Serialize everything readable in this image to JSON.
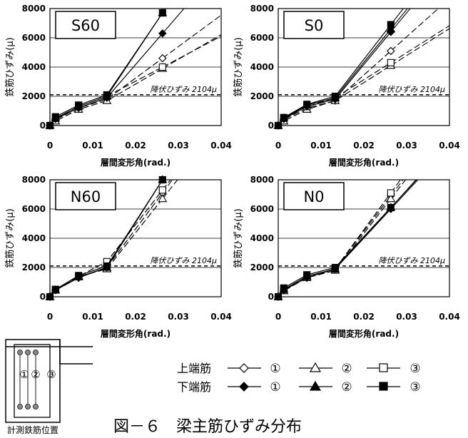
{
  "chart_data": [
    {
      "type": "line",
      "title": "S60",
      "xlabel": "層間変形角(rad.)",
      "ylabel": "鉄筋ひずみ(μ)",
      "xlim": [
        0,
        0.04
      ],
      "ylim": [
        0,
        8000
      ],
      "xticks": [
        "0",
        "0.01",
        "0.02",
        "0.03",
        "0.04"
      ],
      "yticks": [
        "0",
        "2000",
        "4000",
        "6000",
        "8000"
      ],
      "yield_label": "降伏ひずみ 2104μ",
      "yield_value": 2104,
      "grid": true,
      "series": [
        {
          "name": "上端筋①",
          "marker": "diamond",
          "fill": "open",
          "x": [
            0,
            0.0013,
            0.0067,
            0.0133,
            0.0263
          ],
          "y": [
            0,
            400,
            1200,
            1800,
            4600
          ]
        },
        {
          "name": "上端筋②",
          "marker": "triangle",
          "fill": "open",
          "x": [
            0,
            0.0013,
            0.0067,
            0.0133,
            0.0263
          ],
          "y": [
            0,
            300,
            1100,
            1700,
            3900
          ]
        },
        {
          "name": "上端筋③",
          "marker": "square",
          "fill": "open",
          "x": [
            0,
            0.0013,
            0.0067,
            0.0133,
            0.0263
          ],
          "y": [
            0,
            500,
            1300,
            2000,
            4000
          ]
        },
        {
          "name": "下端筋①",
          "marker": "diamond",
          "fill": "solid",
          "x": [
            0,
            0.0013,
            0.0067,
            0.0133,
            0.0263
          ],
          "y": [
            0,
            450,
            1200,
            1900,
            6300
          ]
        },
        {
          "name": "下端筋②",
          "marker": "triangle",
          "fill": "solid",
          "x": [
            0,
            0.0013,
            0.0067,
            0.0133,
            0.0263
          ],
          "y": [
            0,
            500,
            1300,
            2000,
            7700
          ]
        },
        {
          "name": "下端筋③",
          "marker": "square",
          "fill": "solid",
          "x": [
            0,
            0.0013,
            0.0067,
            0.0133,
            0.0263
          ],
          "y": [
            0,
            600,
            1400,
            2100,
            7700
          ]
        }
      ]
    },
    {
      "type": "line",
      "title": "S0",
      "xlabel": "層間変形角(rad.)",
      "ylabel": "鉄筋ひずみ(μ)",
      "xlim": [
        0,
        0.04
      ],
      "ylim": [
        0,
        8000
      ],
      "xticks": [
        "0",
        "0.01",
        "0.02",
        "0.03",
        "0.04"
      ],
      "yticks": [
        "0",
        "2000",
        "4000",
        "6000",
        "8000"
      ],
      "yield_label": "降伏ひずみ 2104μ",
      "yield_value": 2104,
      "grid": true,
      "series": [
        {
          "name": "上端筋①",
          "marker": "diamond",
          "fill": "open",
          "x": [
            0,
            0.0013,
            0.0067,
            0.0133,
            0.0263
          ],
          "y": [
            0,
            400,
            1200,
            1700,
            5100
          ]
        },
        {
          "name": "上端筋②",
          "marker": "triangle",
          "fill": "open",
          "x": [
            0,
            0.0013,
            0.0067,
            0.0133,
            0.0263
          ],
          "y": [
            0,
            300,
            1100,
            1700,
            4100
          ]
        },
        {
          "name": "上端筋③",
          "marker": "square",
          "fill": "open",
          "x": [
            0,
            0.0013,
            0.0067,
            0.0133,
            0.0263
          ],
          "y": [
            0,
            500,
            1300,
            1900,
            4300
          ]
        },
        {
          "name": "下端筋①",
          "marker": "diamond",
          "fill": "solid",
          "x": [
            0,
            0.0013,
            0.0067,
            0.0133,
            0.0263
          ],
          "y": [
            0,
            450,
            1300,
            1800,
            6400
          ]
        },
        {
          "name": "下端筋②",
          "marker": "triangle",
          "fill": "solid",
          "x": [
            0,
            0.0013,
            0.0067,
            0.0133,
            0.0263
          ],
          "y": [
            0,
            500,
            1400,
            1900,
            6600
          ]
        },
        {
          "name": "下端筋③",
          "marker": "square",
          "fill": "solid",
          "x": [
            0,
            0.0013,
            0.0067,
            0.0133,
            0.0263
          ],
          "y": [
            0,
            550,
            1450,
            2000,
            6900
          ]
        }
      ]
    },
    {
      "type": "line",
      "title": "N60",
      "xlabel": "層間変形角(rad.)",
      "ylabel": "鉄筋ひずみ(μ)",
      "xlim": [
        0,
        0.04
      ],
      "ylim": [
        0,
        8000
      ],
      "xticks": [
        "0",
        "0.01",
        "0.02",
        "0.03",
        "0.04"
      ],
      "yticks": [
        "0",
        "2000",
        "4000",
        "6000",
        "8000"
      ],
      "yield_label": "降伏ひずみ 2104μ",
      "yield_value": 2104,
      "grid": true,
      "series": [
        {
          "name": "上端筋①",
          "marker": "diamond",
          "fill": "open",
          "x": [
            0,
            0.0013,
            0.0067,
            0.0133,
            0.0263
          ],
          "y": [
            0,
            450,
            1300,
            2000,
            7100
          ]
        },
        {
          "name": "上端筋②",
          "marker": "triangle",
          "fill": "open",
          "x": [
            0,
            0.0013,
            0.0067,
            0.0133,
            0.0263
          ],
          "y": [
            0,
            450,
            1400,
            1900,
            6700
          ]
        },
        {
          "name": "上端筋③",
          "marker": "square",
          "fill": "open",
          "x": [
            0,
            0.0013,
            0.0067,
            0.0133,
            0.0263
          ],
          "y": [
            0,
            500,
            1400,
            2400,
            7300
          ]
        },
        {
          "name": "下端筋①",
          "marker": "diamond",
          "fill": "solid",
          "x": [
            0,
            0.0013,
            0.0067,
            0.0133,
            0.0263
          ],
          "y": [
            0,
            450,
            1300,
            2000,
            8000
          ]
        },
        {
          "name": "下端筋②",
          "marker": "triangle",
          "fill": "solid",
          "x": [
            0,
            0.0013,
            0.0067,
            0.0133,
            0.0263
          ],
          "y": [
            0,
            450,
            1350,
            2000,
            8000
          ]
        },
        {
          "name": "下端筋③",
          "marker": "square",
          "fill": "solid",
          "x": [
            0,
            0.0013,
            0.0067,
            0.0133,
            0.0263
          ],
          "y": [
            0,
            500,
            1450,
            2100,
            8000
          ]
        }
      ]
    },
    {
      "type": "line",
      "title": "N0",
      "xlabel": "層間変形角(rad.)",
      "ylabel": "鉄筋ひずみ(μ)",
      "xlim": [
        0,
        0.04
      ],
      "ylim": [
        0,
        8000
      ],
      "xticks": [
        "0",
        "0.01",
        "0.02",
        "0.03",
        "0.04"
      ],
      "yticks": [
        "0",
        "2000",
        "4000",
        "6000",
        "8000"
      ],
      "yield_label": "降伏ひずみ 2104μ",
      "yield_value": 2104,
      "grid": true,
      "series": [
        {
          "name": "上端筋①",
          "marker": "diamond",
          "fill": "open",
          "x": [
            0,
            0.0013,
            0.0067,
            0.0133,
            0.0263
          ],
          "y": [
            0,
            450,
            1300,
            1900,
            6900
          ]
        },
        {
          "name": "上端筋②",
          "marker": "triangle",
          "fill": "open",
          "x": [
            0,
            0.0013,
            0.0067,
            0.0133,
            0.0263
          ],
          "y": [
            0,
            400,
            1300,
            1800,
            6700
          ]
        },
        {
          "name": "上端筋③",
          "marker": "square",
          "fill": "open",
          "x": [
            0,
            0.0013,
            0.0067,
            0.0133,
            0.0263
          ],
          "y": [
            0,
            500,
            1400,
            1900,
            7100
          ]
        },
        {
          "name": "下端筋①",
          "marker": "diamond",
          "fill": "solid",
          "x": [
            0,
            0.0013,
            0.0067,
            0.0133,
            0.0263
          ],
          "y": [
            0,
            450,
            1300,
            1900,
            6000
          ]
        },
        {
          "name": "下端筋②",
          "marker": "triangle",
          "fill": "solid",
          "x": [
            0,
            0.0013,
            0.0067,
            0.0133,
            0.0263
          ],
          "y": [
            0,
            500,
            1400,
            1900,
            6100
          ]
        },
        {
          "name": "下端筋③",
          "marker": "square",
          "fill": "solid",
          "x": [
            0,
            0.0013,
            0.0067,
            0.0133,
            0.0263
          ],
          "y": [
            0,
            600,
            1500,
            2000,
            6100
          ]
        }
      ]
    }
  ],
  "legend": {
    "row_top": "上端筋",
    "row_bottom": "下端筋",
    "item_1": "①",
    "item_2": "②",
    "item_3": "③"
  },
  "section_diagram": {
    "label_1": "①",
    "label_2": "②",
    "label_3": "③",
    "caption": "計測鉄筋位置"
  },
  "figure_caption": "図－６　梁主筋ひずみ分布"
}
